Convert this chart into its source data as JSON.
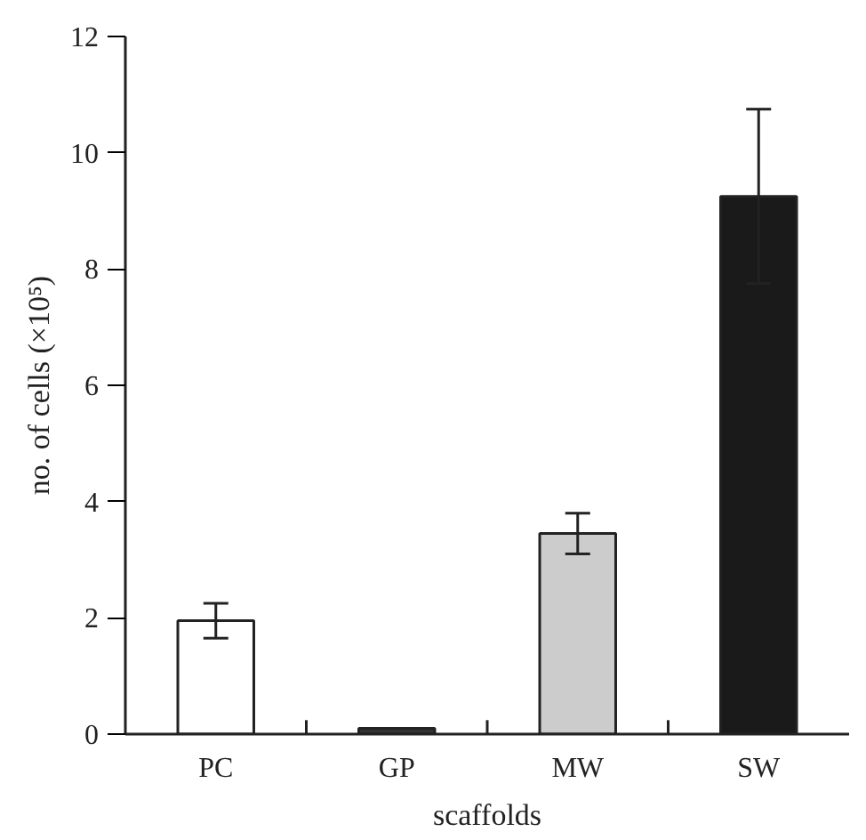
{
  "chart_data": {
    "type": "bar",
    "xlabel": "scaffolds",
    "ylabel": "no. of cells (×10⁵)",
    "categories": [
      "PC",
      "GP",
      "MW",
      "SW"
    ],
    "values": [
      1.95,
      0.1,
      3.45,
      9.25
    ],
    "errors": [
      0.3,
      null,
      0.35,
      1.5
    ],
    "colors": [
      "#ffffff",
      "#333333",
      "#cccccc",
      "#1a1a1a"
    ],
    "ylim": [
      0,
      12
    ],
    "yticks": [
      0,
      2,
      4,
      6,
      8,
      10,
      12
    ],
    "grid": false
  }
}
